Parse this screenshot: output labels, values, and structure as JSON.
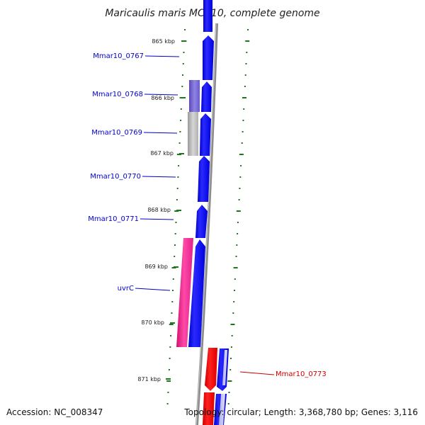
{
  "title": "Maricaulis maris MCS10, complete genome",
  "footer": {
    "accession": "Accession: NC_008347",
    "summary": "Topology: circular; Length: 3,368,780 bp; Genes: 3,116"
  },
  "colors": {
    "forward_cds": "#0000ee",
    "reverse_cds": "#ee0000",
    "trna": "#777777",
    "pseudo": "#6b5bd0",
    "uvrC": "#ee2a8a",
    "tick": "#1a7a1a",
    "backbone": "#888888",
    "label_forward": "#0000cc",
    "label_reverse": "#cc0000"
  },
  "ticks": [
    {
      "label": "865 kbp"
    },
    {
      "label": "866 kbp"
    },
    {
      "label": "867 kbp"
    },
    {
      "label": "868 kbp"
    },
    {
      "label": "869 kbp"
    },
    {
      "label": "870 kbp"
    },
    {
      "label": "871 kbp"
    }
  ],
  "genes": [
    {
      "label": "Mmar10_0767",
      "strand": "forward"
    },
    {
      "label": "Mmar10_0768",
      "strand": "forward"
    },
    {
      "label": "Mmar10_0769",
      "strand": "forward"
    },
    {
      "label": "Mmar10_0770",
      "strand": "forward"
    },
    {
      "label": "Mmar10_0771",
      "strand": "forward"
    },
    {
      "label": "uvrC",
      "strand": "forward"
    },
    {
      "label": "Mmar10_0773",
      "strand": "reverse"
    }
  ]
}
